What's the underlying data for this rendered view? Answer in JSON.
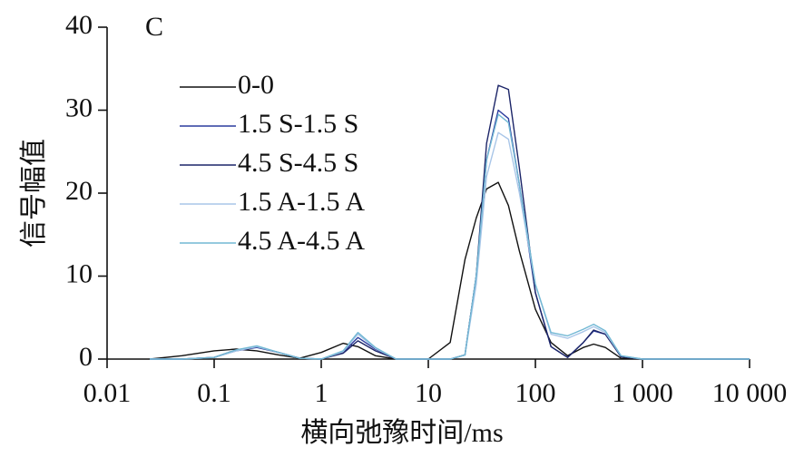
{
  "chart_data": {
    "type": "line",
    "panel_label": "C",
    "xlabel": "横向弛豫时间/ms",
    "ylabel": "信号幅值",
    "xscale": "log",
    "xlim": [
      0.01,
      10000
    ],
    "xticks": [
      0.01,
      0.1,
      1,
      10,
      100,
      {
        "value": 1000,
        "label": "1 000"
      },
      {
        "value": 10000,
        "label": "10 000"
      }
    ],
    "ylim": [
      0,
      40
    ],
    "yticks": [
      0,
      10,
      20,
      30,
      40
    ],
    "legend": "upper left",
    "x": [
      0.025,
      0.05,
      0.1,
      0.16,
      0.25,
      0.4,
      0.63,
      1,
      1.6,
      2.2,
      3.2,
      5,
      10,
      16,
      22,
      28,
      35,
      45,
      56,
      71,
      100,
      140,
      200,
      280,
      350,
      450,
      630,
      1000,
      10000
    ],
    "series": [
      {
        "name": "0-0",
        "color": "#111111",
        "values": [
          0,
          0.4,
          1.0,
          1.2,
          1.0,
          0.5,
          0.1,
          0.8,
          1.9,
          1.5,
          0.4,
          0,
          0,
          2,
          12,
          17,
          20.5,
          21.3,
          18.5,
          13,
          6,
          2,
          0.4,
          1.4,
          1.8,
          1.4,
          0.1,
          0,
          0
        ]
      },
      {
        "name": "1.5 S-1.5 S",
        "color": "#2b3c9e",
        "values": [
          0,
          0,
          0.2,
          1.0,
          1.4,
          0.8,
          0.1,
          0,
          0.8,
          2.6,
          1.2,
          0,
          0,
          0,
          0.5,
          10,
          24,
          30,
          29,
          21,
          8,
          1.5,
          0.2,
          2,
          3.4,
          3,
          0.3,
          0,
          0
        ]
      },
      {
        "name": "4.5 S-4.5 S",
        "color": "#1c2568",
        "values": [
          0,
          0,
          0.2,
          1.1,
          1.5,
          0.8,
          0.1,
          0,
          0.7,
          2.2,
          1.0,
          0,
          0,
          0,
          0.5,
          10,
          26,
          33,
          32.5,
          23,
          8,
          1.5,
          0.2,
          2,
          3.5,
          3,
          0.3,
          0,
          0
        ]
      },
      {
        "name": "1.5 A-1.5 A",
        "color": "#a9c6e8",
        "values": [
          0,
          0,
          0.2,
          1.0,
          1.5,
          0.8,
          0.1,
          0,
          0.9,
          3.0,
          1.3,
          0,
          0,
          0,
          0.5,
          9,
          22,
          27.3,
          26.5,
          20,
          9,
          3,
          2.5,
          3.3,
          3.9,
          3.2,
          0.4,
          0,
          0
        ]
      },
      {
        "name": "4.5 A-4.5 A",
        "color": "#72b8d4",
        "values": [
          0,
          0,
          0.2,
          1.1,
          1.6,
          0.8,
          0.1,
          0,
          1.0,
          3.2,
          1.4,
          0,
          0,
          0,
          0.5,
          10,
          24,
          29.5,
          28.5,
          21,
          9,
          3.2,
          2.8,
          3.6,
          4.2,
          3.4,
          0.4,
          0,
          0
        ]
      }
    ]
  }
}
